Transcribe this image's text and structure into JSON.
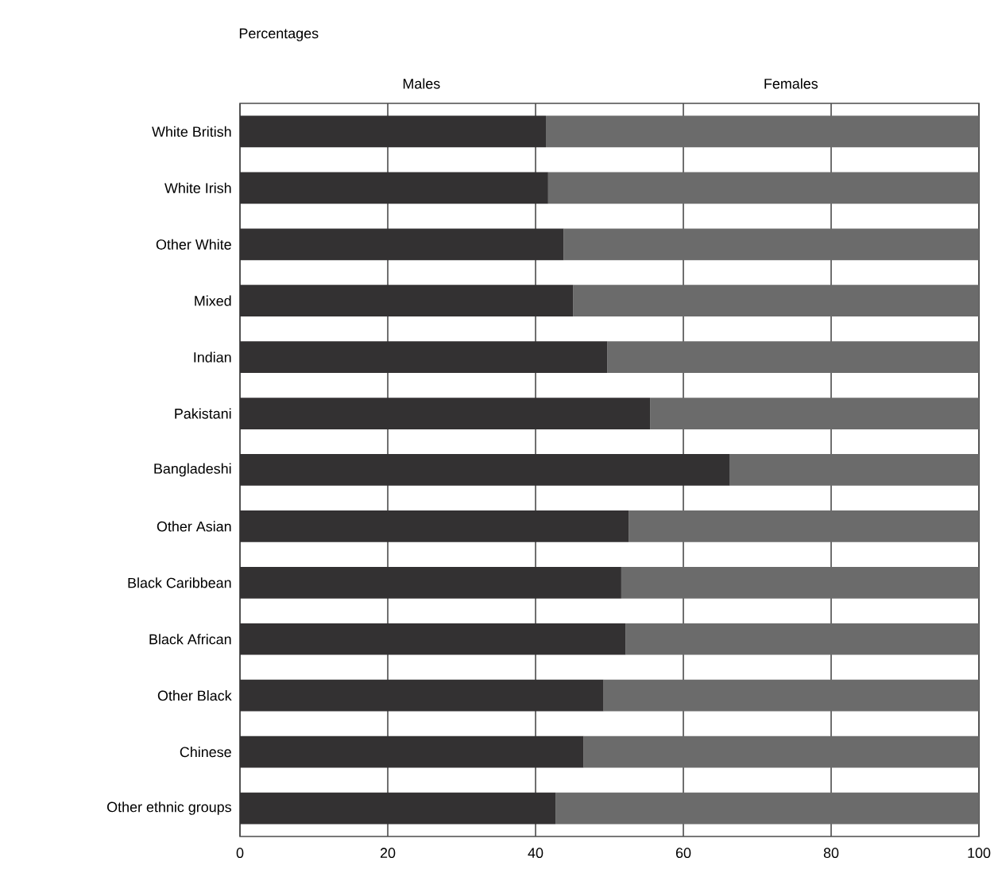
{
  "chart_data": {
    "type": "bar",
    "orientation": "horizontal",
    "stacked": true,
    "xlabel": "Percentages",
    "categories": [
      "White British",
      "White Irish",
      "Other White",
      "Mixed",
      "Indian",
      "Pakistani",
      "Bangladeshi",
      "Other Asian",
      "Black Caribbean",
      "Black African",
      "Other Black",
      "Chinese",
      "Other ethnic groups"
    ],
    "series": [
      {
        "name": "Males",
        "color": "#333132",
        "values": [
          41.4,
          41.7,
          43.8,
          45.1,
          49.7,
          55.5,
          66.3,
          52.6,
          51.6,
          52.2,
          49.2,
          46.5,
          42.7
        ]
      },
      {
        "name": "Females",
        "color": "#6b6b6b",
        "values": [
          58.6,
          58.3,
          56.2,
          54.9,
          50.3,
          44.5,
          33.7,
          47.4,
          48.4,
          47.8,
          50.8,
          53.5,
          57.3
        ]
      }
    ],
    "xlim": [
      0,
      100
    ],
    "xticks": [
      0,
      20,
      40,
      60,
      80,
      100
    ],
    "grid": "x"
  }
}
